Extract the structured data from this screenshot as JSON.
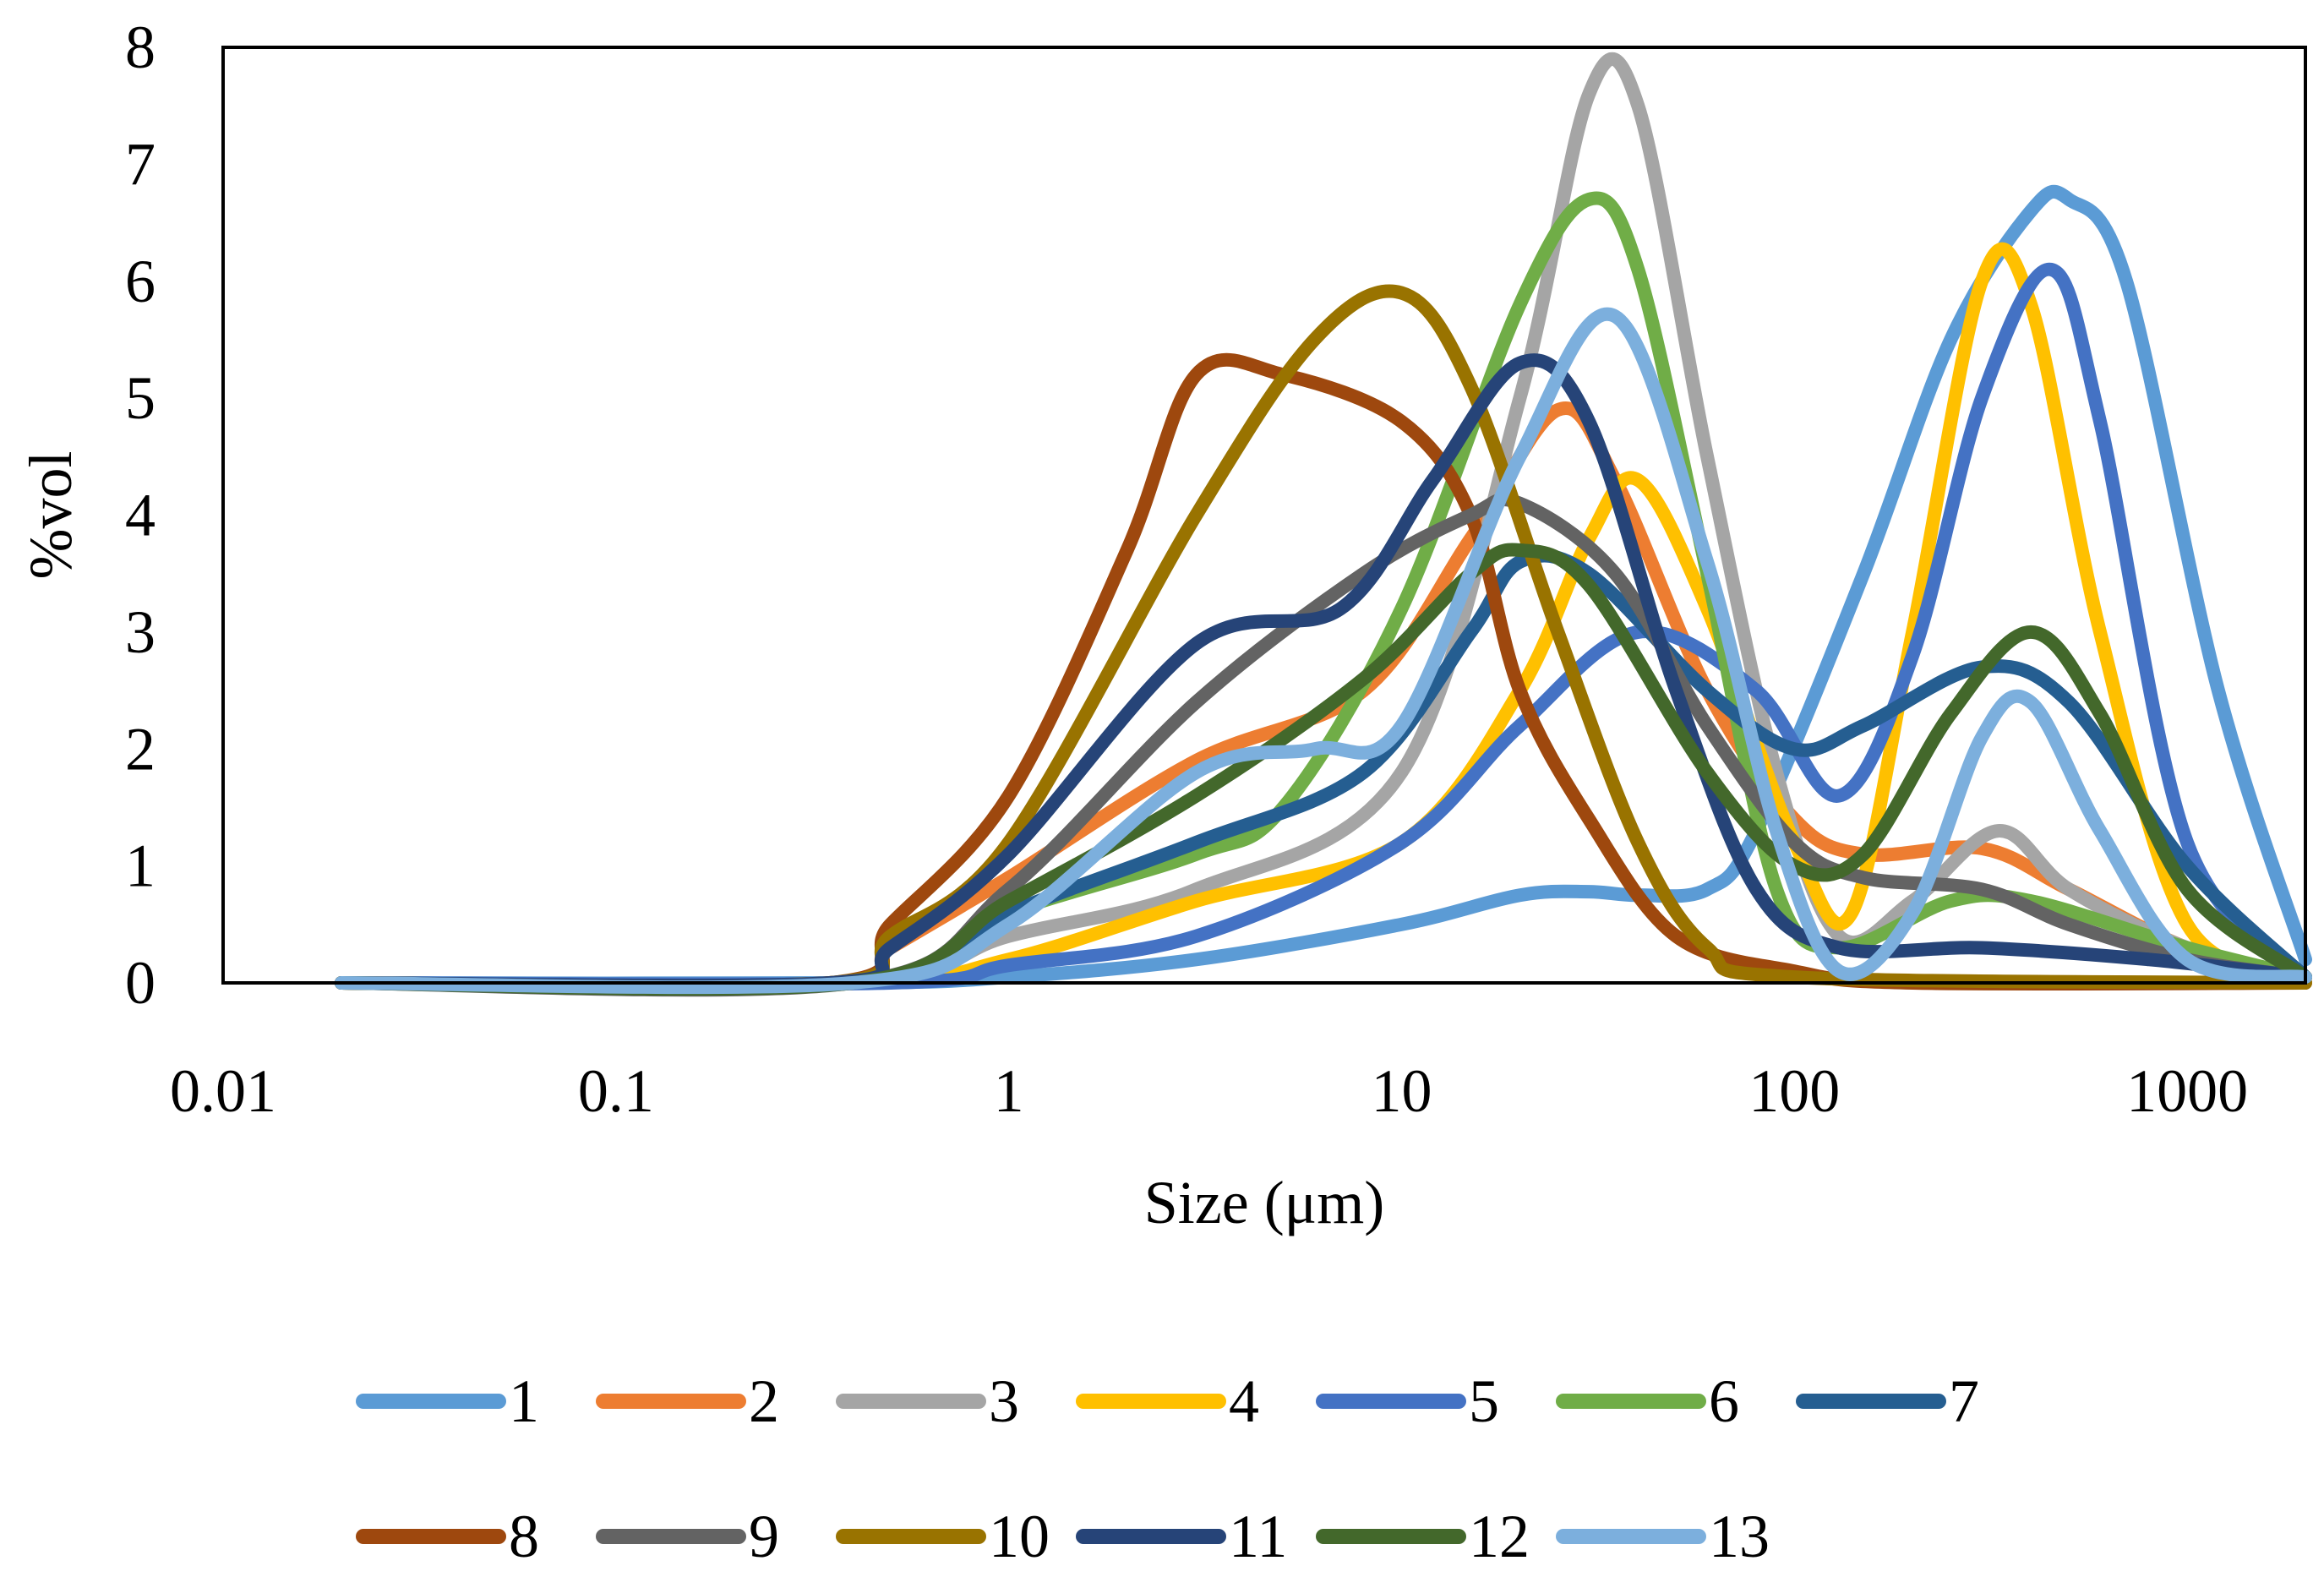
{
  "chart_data": {
    "type": "line",
    "title": "",
    "xlabel": "Size (μm)",
    "ylabel": "%vol",
    "x_scale": "log",
    "xlim": [
      0.01,
      2000
    ],
    "ylim": [
      0,
      8
    ],
    "x_ticks": [
      0.01,
      0.1,
      1,
      10,
      100,
      1000
    ],
    "x_tick_labels": [
      "0.01",
      "0.1",
      "1",
      "10",
      "100",
      "1000"
    ],
    "y_ticks": [
      0,
      1,
      2,
      3,
      4,
      5,
      6,
      7,
      8
    ],
    "y_tick_labels": [
      "0",
      "1",
      "2",
      "3",
      "4",
      "5",
      "6",
      "7",
      "8"
    ],
    "grid": false,
    "legend_position": "bottom",
    "series": [
      {
        "name": "1",
        "color": "#5B9BD5",
        "points": [
          [
            0.02,
            0
          ],
          [
            0.4,
            0
          ],
          [
            1,
            0.05
          ],
          [
            3,
            0.2
          ],
          [
            10,
            0.5
          ],
          [
            20,
            0.75
          ],
          [
            30,
            0.78
          ],
          [
            40,
            0.75
          ],
          [
            60,
            0.8
          ],
          [
            80,
            1.3
          ],
          [
            150,
            3.5
          ],
          [
            250,
            5.5
          ],
          [
            400,
            6.6
          ],
          [
            500,
            6.7
          ],
          [
            700,
            6.0
          ],
          [
            1200,
            2.5
          ],
          [
            2000,
            0.2
          ]
        ]
      },
      {
        "name": "2",
        "color": "#ED7D31",
        "points": [
          [
            0.02,
            0
          ],
          [
            0.35,
            0
          ],
          [
            0.5,
            0.3
          ],
          [
            1,
            0.9
          ],
          [
            3,
            1.9
          ],
          [
            8,
            2.5
          ],
          [
            15,
            3.8
          ],
          [
            25,
            4.9
          ],
          [
            35,
            4.3
          ],
          [
            60,
            2.5
          ],
          [
            100,
            1.4
          ],
          [
            150,
            1.1
          ],
          [
            300,
            1.15
          ],
          [
            500,
            0.8
          ],
          [
            1000,
            0.3
          ],
          [
            2000,
            0.05
          ]
        ]
      },
      {
        "name": "3",
        "color": "#A5A5A5",
        "points": [
          [
            0.02,
            0
          ],
          [
            0.4,
            0
          ],
          [
            1,
            0.4
          ],
          [
            3,
            0.8
          ],
          [
            10,
            1.8
          ],
          [
            20,
            5
          ],
          [
            30,
            7.6
          ],
          [
            40,
            7.5
          ],
          [
            60,
            4.5
          ],
          [
            90,
            1.8
          ],
          [
            130,
            0.4
          ],
          [
            200,
            0.7
          ],
          [
            330,
            1.3
          ],
          [
            500,
            0.8
          ],
          [
            1000,
            0.3
          ],
          [
            2000,
            0.05
          ]
        ]
      },
      {
        "name": "4",
        "color": "#FFC000",
        "points": [
          [
            0.02,
            0
          ],
          [
            0.4,
            0
          ],
          [
            1,
            0.2
          ],
          [
            3,
            0.7
          ],
          [
            10,
            1.2
          ],
          [
            20,
            2.5
          ],
          [
            30,
            3.8
          ],
          [
            40,
            4.3
          ],
          [
            60,
            3.2
          ],
          [
            100,
            1.2
          ],
          [
            140,
            0.6
          ],
          [
            200,
            3
          ],
          [
            300,
            6
          ],
          [
            400,
            5.8
          ],
          [
            600,
            3
          ],
          [
            1000,
            0.5
          ],
          [
            2000,
            0.05
          ]
        ]
      },
      {
        "name": "5",
        "color": "#4472C4",
        "points": [
          [
            0.02,
            0
          ],
          [
            0.5,
            0
          ],
          [
            1,
            0.15
          ],
          [
            3,
            0.4
          ],
          [
            10,
            1.2
          ],
          [
            20,
            2.2
          ],
          [
            40,
            3
          ],
          [
            80,
            2.5
          ],
          [
            130,
            1.6
          ],
          [
            200,
            2.8
          ],
          [
            300,
            5
          ],
          [
            450,
            6.1
          ],
          [
            600,
            4.8
          ],
          [
            1000,
            1.2
          ],
          [
            2000,
            0.05
          ]
        ]
      },
      {
        "name": "6",
        "color": "#70AD47",
        "points": [
          [
            0.02,
            0
          ],
          [
            0.4,
            0
          ],
          [
            1,
            0.6
          ],
          [
            3,
            1.1
          ],
          [
            5,
            1.5
          ],
          [
            10,
            3.2
          ],
          [
            20,
            5.8
          ],
          [
            30,
            6.7
          ],
          [
            40,
            6.1
          ],
          [
            60,
            3.5
          ],
          [
            90,
            0.8
          ],
          [
            130,
            0.3
          ],
          [
            250,
            0.7
          ],
          [
            400,
            0.7
          ],
          [
            1000,
            0.3
          ],
          [
            2000,
            0.05
          ]
        ]
      },
      {
        "name": "7",
        "color": "#255E91",
        "points": [
          [
            0.02,
            0
          ],
          [
            0.4,
            0
          ],
          [
            1,
            0.6
          ],
          [
            3,
            1.2
          ],
          [
            8,
            1.8
          ],
          [
            15,
            3
          ],
          [
            20,
            3.6
          ],
          [
            30,
            3.5
          ],
          [
            60,
            2.5
          ],
          [
            100,
            2.0
          ],
          [
            150,
            2.2
          ],
          [
            300,
            2.7
          ],
          [
            500,
            2.4
          ],
          [
            1000,
            1
          ],
          [
            2000,
            0.05
          ]
        ]
      },
      {
        "name": "8",
        "color": "#9E480E",
        "points": [
          [
            0.02,
            0
          ],
          [
            0.35,
            0
          ],
          [
            0.5,
            0.5
          ],
          [
            1,
            1.6
          ],
          [
            2,
            3.7
          ],
          [
            3,
            5.2
          ],
          [
            5,
            5.2
          ],
          [
            10,
            4.8
          ],
          [
            15,
            4
          ],
          [
            20,
            2.5
          ],
          [
            30,
            1.4
          ],
          [
            50,
            0.4
          ],
          [
            100,
            0.1
          ],
          [
            200,
            0
          ],
          [
            2000,
            0
          ]
        ]
      },
      {
        "name": "9",
        "color": "#636363",
        "points": [
          [
            0.02,
            0
          ],
          [
            0.4,
            0
          ],
          [
            1,
            0.8
          ],
          [
            3,
            2.4
          ],
          [
            8,
            3.5
          ],
          [
            15,
            4
          ],
          [
            20,
            4.1
          ],
          [
            35,
            3.5
          ],
          [
            60,
            2.2
          ],
          [
            100,
            1.2
          ],
          [
            150,
            0.9
          ],
          [
            300,
            0.8
          ],
          [
            500,
            0.5
          ],
          [
            1000,
            0.2
          ],
          [
            2000,
            0.05
          ]
        ]
      },
      {
        "name": "10",
        "color": "#997300",
        "points": [
          [
            0.02,
            0
          ],
          [
            0.35,
            0
          ],
          [
            0.5,
            0.4
          ],
          [
            1,
            1.2
          ],
          [
            3,
            4
          ],
          [
            6,
            5.5
          ],
          [
            10,
            5.9
          ],
          [
            15,
            5.1
          ],
          [
            25,
            3
          ],
          [
            40,
            1.2
          ],
          [
            60,
            0.3
          ],
          [
            100,
            0.05
          ],
          [
            2000,
            0
          ]
        ]
      },
      {
        "name": "11",
        "color": "#264478",
        "points": [
          [
            0.02,
            0
          ],
          [
            0.35,
            0
          ],
          [
            0.5,
            0.3
          ],
          [
            1,
            1.1
          ],
          [
            3,
            2.9
          ],
          [
            7,
            3.2
          ],
          [
            12,
            4.3
          ],
          [
            20,
            5.3
          ],
          [
            30,
            4.8
          ],
          [
            50,
            2.5
          ],
          [
            80,
            0.8
          ],
          [
            130,
            0.3
          ],
          [
            300,
            0.3
          ],
          [
            800,
            0.2
          ],
          [
            2000,
            0.05
          ]
        ]
      },
      {
        "name": "12",
        "color": "#43682B",
        "points": [
          [
            0.02,
            0
          ],
          [
            0.4,
            0
          ],
          [
            1,
            0.7
          ],
          [
            3,
            1.6
          ],
          [
            8,
            2.6
          ],
          [
            15,
            3.5
          ],
          [
            20,
            3.7
          ],
          [
            30,
            3.4
          ],
          [
            60,
            1.8
          ],
          [
            100,
            1.0
          ],
          [
            150,
            1.1
          ],
          [
            250,
            2.3
          ],
          [
            400,
            3
          ],
          [
            600,
            2.3
          ],
          [
            1000,
            0.8
          ],
          [
            2000,
            0.05
          ]
        ]
      },
      {
        "name": "13",
        "color": "#7CAFDD",
        "points": [
          [
            0.02,
            0
          ],
          [
            0.4,
            0
          ],
          [
            1,
            0.5
          ],
          [
            3,
            1.8
          ],
          [
            6,
            2.0
          ],
          [
            10,
            2.2
          ],
          [
            20,
            4.5
          ],
          [
            35,
            5.7
          ],
          [
            60,
            3.6
          ],
          [
            90,
            1.3
          ],
          [
            130,
            0.1
          ],
          [
            200,
            0.6
          ],
          [
            300,
            2.1
          ],
          [
            400,
            2.4
          ],
          [
            600,
            1.3
          ],
          [
            1000,
            0.2
          ],
          [
            2000,
            0.05
          ]
        ]
      }
    ]
  }
}
